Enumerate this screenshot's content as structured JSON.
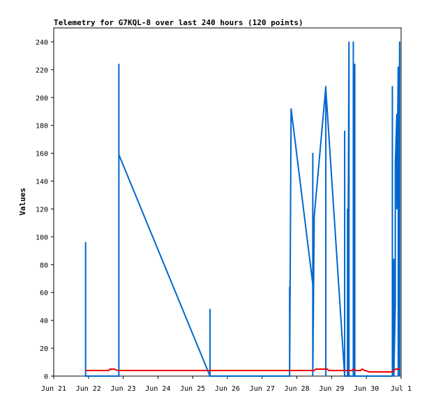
{
  "chart_data": {
    "type": "line",
    "title": "Telemetry for G7KQL-8 over last 240 hours (120 points)",
    "ylabel": "Values",
    "xlabel": "",
    "xlim": [
      "2021-06-21",
      "2021-07-01"
    ],
    "ylim": [
      0,
      250
    ],
    "y_ticks": [
      0,
      20,
      40,
      60,
      80,
      100,
      120,
      140,
      160,
      180,
      200,
      220,
      240
    ],
    "x_tick_labels": [
      "Jun 21",
      "Jun 22",
      "Jun 23",
      "Jun 24",
      "Jun 25",
      "Jun 26",
      "Jun 27",
      "Jun 28",
      "Jun 29",
      "Jun 30",
      "Jul 1"
    ],
    "x_tick_dates": [
      "2021-06-21",
      "2021-06-22",
      "2021-06-23",
      "2021-06-24",
      "2021-06-25",
      "2021-06-26",
      "2021-06-27",
      "2021-06-28",
      "2021-06-29",
      "2021-06-30",
      "2021-07-01"
    ],
    "grid": false,
    "legend": "none",
    "series": [
      {
        "color": "#0066cc",
        "points": [
          [
            "2021-06-21 22:00",
            0
          ],
          [
            "2021-06-21 22:00",
            96
          ],
          [
            "2021-06-21 22:00",
            0
          ],
          [
            "2021-06-22 21:00",
            0
          ],
          [
            "2021-06-22 21:00",
            224
          ],
          [
            "2021-06-22 21:00",
            159
          ],
          [
            "2021-06-25 12:00",
            0
          ],
          [
            "2021-06-25 12:00",
            48
          ],
          [
            "2021-06-25 12:00",
            24
          ],
          [
            "2021-06-25 12:00",
            0
          ],
          [
            "2021-06-27 19:00",
            0
          ],
          [
            "2021-06-27 19:00",
            31
          ],
          [
            "2021-06-27 19:00",
            0
          ],
          [
            "2021-06-27 19:00",
            64
          ],
          [
            "2021-06-27 19:00",
            0
          ],
          [
            "2021-06-27 20:00",
            192
          ],
          [
            "2021-06-28 11:00",
            66
          ],
          [
            "2021-06-28 11:00",
            160
          ],
          [
            "2021-06-28 11:00",
            0
          ],
          [
            "2021-06-28 12:00",
            115
          ],
          [
            "2021-06-28 20:00",
            208
          ],
          [
            "2021-06-28 20:00",
            0
          ],
          [
            "2021-06-28 20:00",
            206
          ],
          [
            "2021-06-29 09:00",
            0
          ],
          [
            "2021-06-29 09:00",
            176
          ],
          [
            "2021-06-29 09:00",
            0
          ],
          [
            "2021-06-29 11:00",
            0
          ],
          [
            "2021-06-29 11:00",
            120
          ],
          [
            "2021-06-29 11:00",
            0
          ],
          [
            "2021-06-29 12:00",
            240
          ],
          [
            "2021-06-29 12:00",
            0
          ],
          [
            "2021-06-29 15:00",
            0
          ],
          [
            "2021-06-29 15:00",
            240
          ],
          [
            "2021-06-29 15:00",
            0
          ],
          [
            "2021-06-29 16:00",
            224
          ],
          [
            "2021-06-29 16:00",
            0
          ],
          [
            "2021-06-30 18:00",
            0
          ],
          [
            "2021-06-30 18:00",
            208
          ],
          [
            "2021-06-30 18:00",
            0
          ],
          [
            "2021-06-30 19:00",
            84
          ],
          [
            "2021-06-30 19:00",
            0
          ],
          [
            "2021-06-30 20:00",
            52
          ],
          [
            "2021-06-30 20:00",
            152
          ],
          [
            "2021-06-30 21:00",
            188
          ],
          [
            "2021-06-30 21:00",
            120
          ],
          [
            "2021-06-30 22:00",
            222
          ],
          [
            "2021-06-30 22:00",
            0
          ],
          [
            "2021-06-30 23:00",
            240
          ],
          [
            "2021-06-30 23:00",
            0
          ]
        ]
      },
      {
        "color": "#ee0000",
        "points": [
          [
            "2021-06-21 22:00",
            4
          ],
          [
            "2021-06-22 14:00",
            4
          ],
          [
            "2021-06-22 15:00",
            5
          ],
          [
            "2021-06-22 18:00",
            5
          ],
          [
            "2021-06-22 20:00",
            4
          ],
          [
            "2021-06-28 12:00",
            4
          ],
          [
            "2021-06-28 13:00",
            5
          ],
          [
            "2021-06-28 21:00",
            5
          ],
          [
            "2021-06-28 22:00",
            4
          ],
          [
            "2021-06-29 14:00",
            4
          ],
          [
            "2021-06-29 15:00",
            5
          ],
          [
            "2021-06-29 17:00",
            4
          ],
          [
            "2021-06-29 20:00",
            4
          ],
          [
            "2021-06-29 21:00",
            5
          ],
          [
            "2021-06-29 23:00",
            4
          ],
          [
            "2021-06-30 02:00",
            3
          ],
          [
            "2021-06-30 18:00",
            3
          ],
          [
            "2021-06-30 20:00",
            5
          ],
          [
            "2021-06-30 23:00",
            5
          ]
        ]
      }
    ]
  }
}
